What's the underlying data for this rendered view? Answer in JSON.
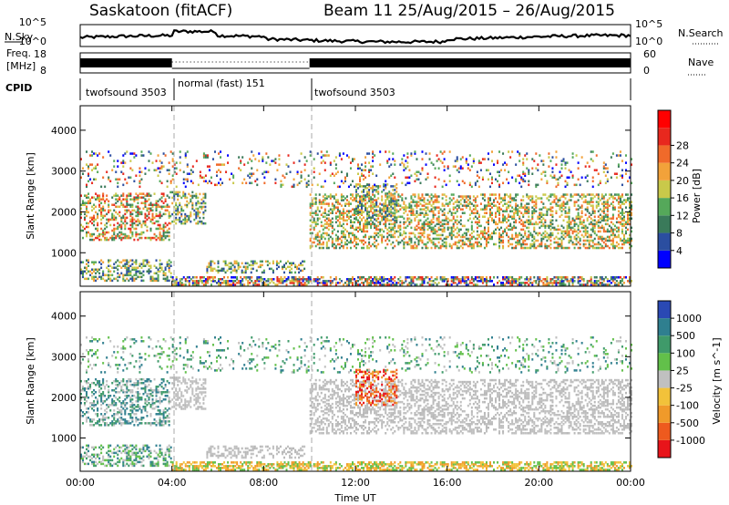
{
  "chart_data": {
    "type": "heatmap",
    "title_left": "Saskatoon (fitACF)",
    "title_right": "Beam 11  25/Aug/2015 – 26/Aug/2015",
    "x_axis": {
      "label": "Time UT",
      "range_hours": [
        0,
        24
      ],
      "ticks": [
        "00:00",
        "04:00",
        "08:00",
        "12:00",
        "16:00",
        "20:00",
        "00:00"
      ]
    },
    "top_panels": {
      "nsky": {
        "left_label": "N.Sky",
        "left_ticks": [
          "10^5",
          "10^0"
        ],
        "right_ticks": [
          "10^5",
          "10^0"
        ],
        "right_label": "N.Search"
      },
      "freq": {
        "left_label_1": "Freq.",
        "left_label_2": "[MHz]",
        "left_ticks": [
          "18",
          "8"
        ],
        "right_ticks": [
          "60",
          "0"
        ],
        "right_label": "Nave"
      },
      "cpid": {
        "label": "CPID",
        "segments": [
          {
            "start_hour": 0,
            "end_hour": 4,
            "text": "twofsound 3503"
          },
          {
            "start_hour": 4,
            "end_hour": 10,
            "text": "normal (fast) 151"
          },
          {
            "start_hour": 10,
            "end_hour": 24,
            "text": "twofsound 3503"
          }
        ]
      }
    },
    "power_panel": {
      "ylabel": "Slant Range [km]",
      "yticks": [
        "1000",
        "2000",
        "3000",
        "4000"
      ],
      "ylim_km": [
        180,
        4600
      ],
      "colorbar_label": "Power [dB]",
      "colorbar_ticks": [
        "4",
        "8",
        "12",
        "16",
        "20",
        "24",
        "28"
      ],
      "colorbar_range": [
        0,
        30
      ],
      "colors": [
        "#0000ff",
        "#2b4ea0",
        "#3a7a5a",
        "#55a85a",
        "#c9c94a",
        "#f2a23a",
        "#f06a2a",
        "#e8281e",
        "#ff0000"
      ]
    },
    "velocity_panel": {
      "ylabel": "Slant Range [km]",
      "yticks": [
        "1000",
        "2000",
        "3000",
        "4000"
      ],
      "ylim_km": [
        180,
        4600
      ],
      "colorbar_label": "Velocity [m s^-1]",
      "colorbar_ticks": [
        "1000",
        "500",
        "100",
        "25",
        "-25",
        "-100",
        "-500",
        "-1000"
      ],
      "colors": [
        "#2a49b4",
        "#2f7f8f",
        "#3f9a6a",
        "#62c04a",
        "#c0c0c0",
        "#f2c23a",
        "#f09a2a",
        "#ee5a1e",
        "#e8141a"
      ]
    },
    "echo_regions": [
      {
        "name": "early-band",
        "t": [
          0.0,
          3.9
        ],
        "r": [
          1300,
          2450
        ],
        "power": "high",
        "velocity": "low-pos"
      },
      {
        "name": "early-bottom",
        "t": [
          0.0,
          4.0
        ],
        "r": [
          300,
          800
        ],
        "power": "mid",
        "velocity": "pos"
      },
      {
        "name": "morning-arc",
        "t": [
          3.9,
          5.5
        ],
        "r": [
          1700,
          2500
        ],
        "power": "mid",
        "velocity": "grey"
      },
      {
        "name": "near-ground",
        "t": [
          4.0,
          24.0
        ],
        "r": [
          200,
          420
        ],
        "power": "low",
        "velocity": "small-neg"
      },
      {
        "name": "midday-low",
        "t": [
          5.5,
          9.8
        ],
        "r": [
          500,
          800
        ],
        "power": "mid",
        "velocity": "grey"
      },
      {
        "name": "afternoon-band",
        "t": [
          10.0,
          24.0
        ],
        "r": [
          1100,
          2450
        ],
        "power": "mid-high",
        "velocity": "grey"
      },
      {
        "name": "noon-patch",
        "t": [
          12.0,
          13.8
        ],
        "r": [
          1800,
          2700
        ],
        "power": "mid",
        "velocity": "neg-large"
      },
      {
        "name": "scatter-top",
        "t": [
          0.0,
          24.0
        ],
        "r": [
          2600,
          3500
        ],
        "power": "low",
        "velocity": "pos"
      }
    ]
  }
}
